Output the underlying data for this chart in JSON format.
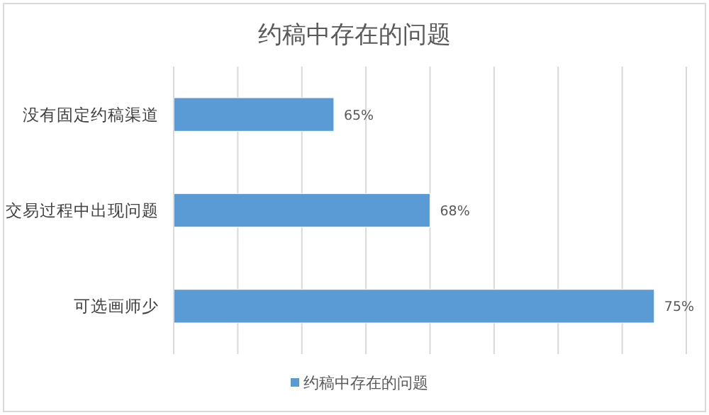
{
  "chart_data": {
    "type": "bar",
    "orientation": "horizontal",
    "title": "约稿中存在的问题",
    "categories": [
      "没有固定约稿渠道",
      "交易过程中出现问题",
      "可选画师少"
    ],
    "series": [
      {
        "name": "约稿中存在的问题",
        "color": "#5b9bd5",
        "values": [
          65,
          68,
          75
        ],
        "value_labels": [
          "65%",
          "68%",
          "75%"
        ]
      }
    ],
    "xlim": [
      60,
      76
    ],
    "xticks": [
      {
        "value": 60,
        "label": null
      },
      {
        "value": 62,
        "label": null
      },
      {
        "value": 64,
        "label": null
      },
      {
        "value": 66,
        "label": null
      },
      {
        "value": 68,
        "label": null
      },
      {
        "value": 70,
        "label": null
      },
      {
        "value": 72,
        "label": null
      },
      {
        "value": 74,
        "label": null
      },
      {
        "value": 76,
        "label": null
      }
    ],
    "grid": "x",
    "legend": "bottom",
    "tick_labels": "y"
  }
}
